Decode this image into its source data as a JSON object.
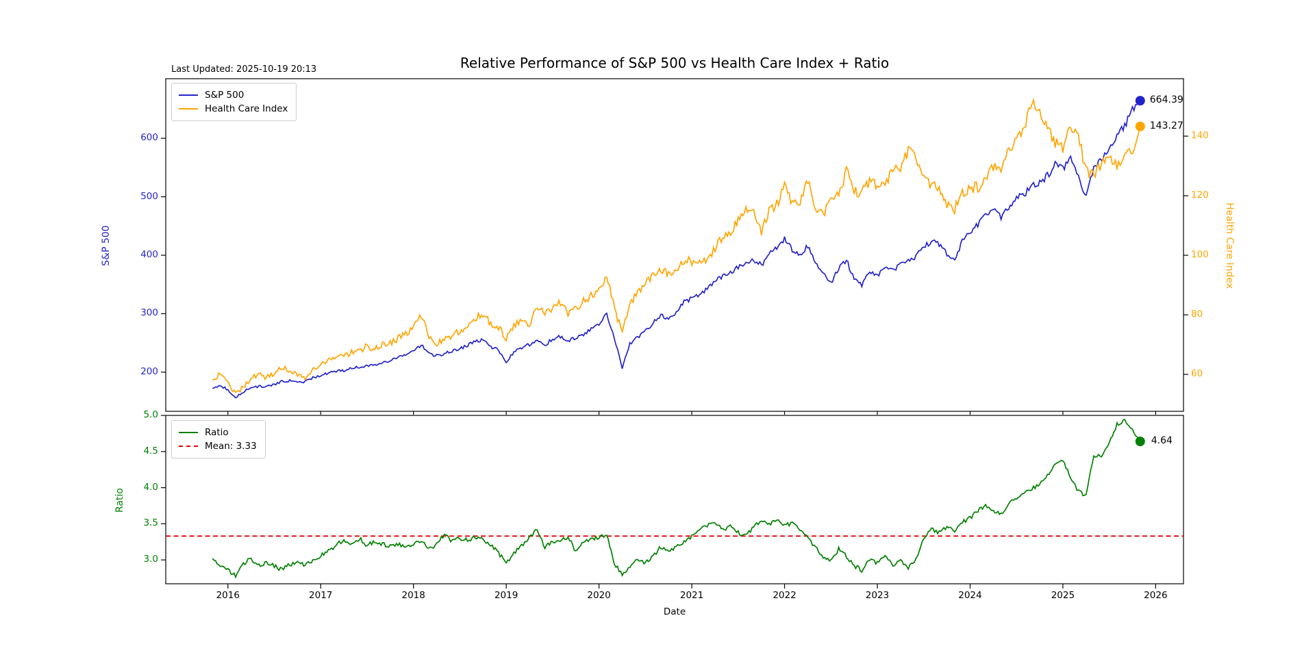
{
  "figure": {
    "title": "Relative Performance of S&P 500 vs Health Care Index + Ratio",
    "last_updated": "Last Updated: 2025-10-19 20:13"
  },
  "chart_data": {
    "type": "line",
    "title": "Relative Performance of S&P 500 vs Health Care Index + Ratio",
    "xlabel": "Date",
    "x_axis": {
      "start": 2015.8333,
      "step": 0.0833333,
      "count": 121,
      "lim": [
        2015.33,
        2026.3
      ],
      "ticks": [
        2016,
        2017,
        2018,
        2019,
        2020,
        2021,
        2022,
        2023,
        2024,
        2025,
        2026
      ]
    },
    "top_panel": {
      "left_axis": {
        "label": "S&P 500",
        "color": "#2323cd",
        "ticks": [
          200,
          300,
          400,
          500,
          600
        ],
        "lim": [
          133,
          702
        ]
      },
      "right_axis": {
        "label": "Health Care Index",
        "color": "#ffa500",
        "ticks": [
          60,
          80,
          100,
          120,
          140
        ],
        "lim": [
          47.6,
          159.3
        ]
      },
      "legend": [
        "S&P 500",
        "Health Care Index"
      ],
      "series": [
        {
          "name": "S&P 500",
          "color": "#2323cd",
          "axis": "left",
          "end_label": "664.39",
          "noise_pct": 1.1,
          "values": [
            172,
            177,
            170,
            157,
            166,
            174,
            175,
            176,
            178,
            184,
            185,
            182,
            184,
            191,
            194,
            198,
            202,
            203,
            206,
            209,
            211,
            213,
            216,
            219,
            225,
            229,
            235,
            247,
            232,
            228,
            232,
            236,
            240,
            246,
            252,
            256,
            242,
            238,
            218,
            234,
            242,
            247,
            256,
            246,
            257,
            261,
            254,
            259,
            264,
            274,
            282,
            300,
            256,
            208,
            248,
            260,
            270,
            284,
            298,
            290,
            302,
            320,
            326,
            333,
            343,
            356,
            363,
            371,
            379,
            388,
            393,
            383,
            403,
            414,
            428,
            408,
            400,
            416,
            390,
            368,
            352,
            378,
            392,
            358,
            348,
            374,
            366,
            380,
            374,
            384,
            389,
            398,
            414,
            424,
            418,
            402,
            392,
            424,
            438,
            452,
            468,
            478,
            466,
            484,
            498,
            504,
            518,
            524,
            536,
            556,
            548,
            566,
            532,
            498,
            548,
            562,
            582,
            602,
            622,
            648,
            664.39
          ]
        },
        {
          "name": "Health Care Index",
          "color": "#ffa500",
          "axis": "right",
          "end_label": "143.27",
          "noise_pct": 1.5,
          "values": [
            58,
            60,
            57,
            53.5,
            56,
            58.5,
            60,
            59,
            60.5,
            62,
            61.5,
            60,
            59,
            61.5,
            63,
            64.5,
            65.5,
            66,
            67.5,
            68,
            69.5,
            68.5,
            70,
            70.5,
            72,
            73.5,
            76,
            79.5,
            73,
            70.5,
            71.5,
            73,
            74.5,
            76.5,
            79,
            80.5,
            77,
            76,
            72,
            76.5,
            78,
            76.5,
            83,
            80,
            82.5,
            84,
            80.5,
            82,
            84.5,
            86.5,
            88,
            93,
            82,
            74,
            84,
            87.5,
            90.5,
            93,
            95.5,
            93.5,
            95.5,
            98.5,
            98,
            97.5,
            99,
            102,
            106,
            107.5,
            112,
            116.5,
            114,
            108,
            115,
            117,
            123,
            117,
            118.5,
            126,
            115,
            114,
            118,
            120,
            128.5,
            121.5,
            121,
            124.5,
            123.5,
            124.5,
            128,
            129,
            135,
            132.5,
            125.5,
            124,
            123.5,
            116.5,
            115.5,
            120.5,
            122.5,
            123,
            125,
            130,
            128,
            135,
            138,
            142,
            151,
            148,
            142,
            138,
            135.5,
            143,
            140,
            128,
            127,
            130,
            133.5,
            130,
            135,
            133,
            143.27
          ]
        }
      ]
    },
    "bottom_panel": {
      "left_axis": {
        "label": "Ratio",
        "color": "#008000",
        "ticks": [
          3.0,
          3.5,
          4.0,
          4.5,
          5.0
        ],
        "lim": [
          2.67,
          5.0
        ]
      },
      "legend": [
        "Ratio",
        "Mean: 3.33"
      ],
      "mean_line": {
        "label": "Mean: 3.33",
        "value": 3.33,
        "color": "#e60000"
      },
      "series": [
        {
          "name": "Ratio",
          "color": "#008000",
          "axis": "left",
          "end_label": "4.64",
          "noise_abs": 0.028,
          "values": [
            3.02,
            2.9,
            2.86,
            2.78,
            2.95,
            3.02,
            2.92,
            2.96,
            2.92,
            2.86,
            2.94,
            2.96,
            2.92,
            3.0,
            3.06,
            3.12,
            3.2,
            3.28,
            3.22,
            3.3,
            3.2,
            3.26,
            3.22,
            3.19,
            3.22,
            3.17,
            3.22,
            3.27,
            3.14,
            3.22,
            3.35,
            3.26,
            3.3,
            3.27,
            3.32,
            3.28,
            3.2,
            3.1,
            2.95,
            3.1,
            3.2,
            3.3,
            3.42,
            3.18,
            3.25,
            3.28,
            3.32,
            3.12,
            3.25,
            3.3,
            3.3,
            3.35,
            2.95,
            2.8,
            2.92,
            3.0,
            2.96,
            3.05,
            3.18,
            3.1,
            3.18,
            3.26,
            3.33,
            3.42,
            3.48,
            3.5,
            3.42,
            3.46,
            3.38,
            3.33,
            3.45,
            3.55,
            3.5,
            3.54,
            3.48,
            3.5,
            3.42,
            3.3,
            3.18,
            3.05,
            2.98,
            3.15,
            3.05,
            2.92,
            2.86,
            3.0,
            2.96,
            3.05,
            2.92,
            2.98,
            2.88,
            3.0,
            3.3,
            3.42,
            3.38,
            3.45,
            3.4,
            3.52,
            3.58,
            3.68,
            3.74,
            3.68,
            3.64,
            3.78,
            3.84,
            3.94,
            3.98,
            4.05,
            4.18,
            4.32,
            4.37,
            4.15,
            3.95,
            3.88,
            4.45,
            4.42,
            4.62,
            4.88,
            4.92,
            4.8,
            4.64
          ]
        }
      ]
    }
  }
}
